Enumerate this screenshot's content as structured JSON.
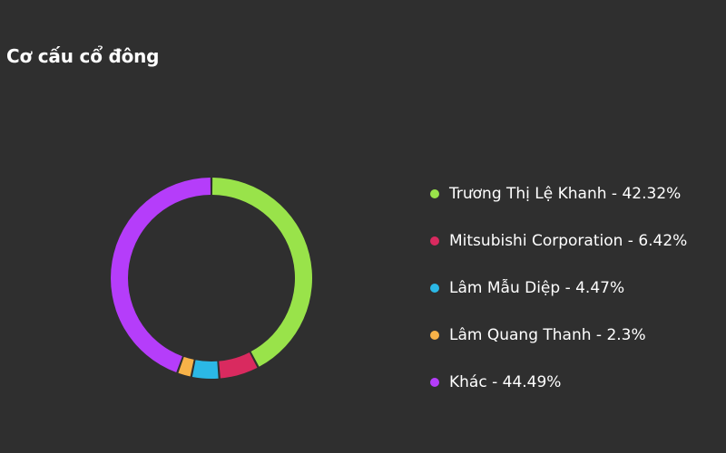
{
  "header": {
    "title": "Cơ cấu cổ đông"
  },
  "chart_data": {
    "type": "pie",
    "title": "Cơ cấu cổ đông",
    "donut": true,
    "legend_position": "right",
    "series": [
      {
        "name": "Trương Thị Lệ Khanh",
        "value": 42.32,
        "color": "#99e34a",
        "label": "Trương Thị Lệ Khanh - 42.32%"
      },
      {
        "name": "Mitsubishi Corporation",
        "value": 6.42,
        "color": "#d92a5f",
        "label": "Mitsubishi Corporation - 6.42%"
      },
      {
        "name": "Lâm Mẫu Diệp",
        "value": 4.47,
        "color": "#2bb8e6",
        "label": "Lâm Mẫu Diệp - 4.47%"
      },
      {
        "name": "Lâm Quang Thanh",
        "value": 2.3,
        "color": "#f7b248",
        "label": "Lâm Quang Thanh - 2.3%"
      },
      {
        "name": "Khác",
        "value": 44.49,
        "color": "#b53dfa",
        "label": "Khác - 44.49%"
      }
    ]
  }
}
